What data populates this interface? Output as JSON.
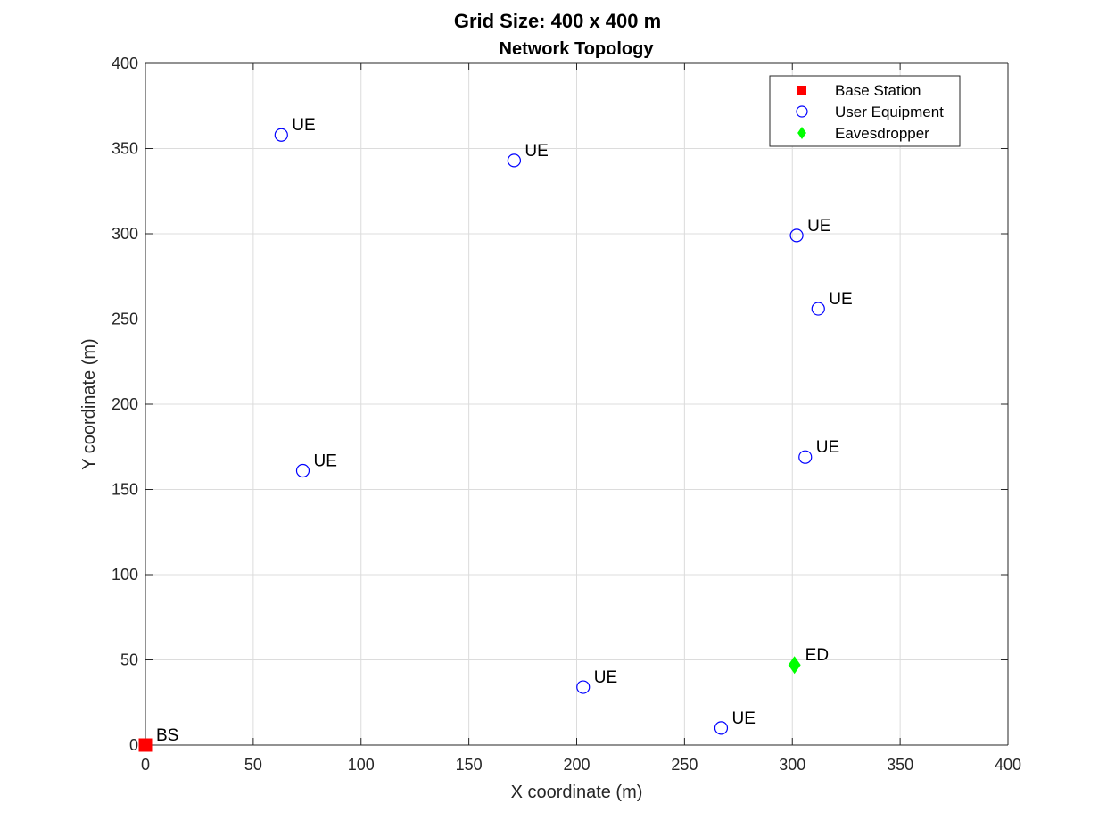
{
  "chart_data": {
    "type": "scatter",
    "title": "Grid Size: 400 x 400 m",
    "subtitle": "Network Topology",
    "xlabel": "X coordinate (m)",
    "ylabel": "Y coordinate (m)",
    "xlim": [
      0,
      400
    ],
    "ylim": [
      0,
      400
    ],
    "xticks": [
      0,
      50,
      100,
      150,
      200,
      250,
      300,
      350,
      400
    ],
    "yticks": [
      0,
      50,
      100,
      150,
      200,
      250,
      300,
      350,
      400
    ],
    "grid": true,
    "legend_position": "top-right",
    "series": [
      {
        "name": "Base Station",
        "marker": "square",
        "color": "#ff0000",
        "filled": true,
        "point_label": "BS",
        "points": [
          {
            "x": 0,
            "y": 0
          }
        ]
      },
      {
        "name": "User Equipment",
        "marker": "circle",
        "color": "#0000ff",
        "filled": false,
        "point_label": "UE",
        "points": [
          {
            "x": 63,
            "y": 358
          },
          {
            "x": 171,
            "y": 343
          },
          {
            "x": 302,
            "y": 299
          },
          {
            "x": 312,
            "y": 256
          },
          {
            "x": 73,
            "y": 161
          },
          {
            "x": 306,
            "y": 169
          },
          {
            "x": 203,
            "y": 34
          },
          {
            "x": 267,
            "y": 10
          }
        ]
      },
      {
        "name": "Eavesdropper",
        "marker": "diamond",
        "color": "#00ff00",
        "filled": true,
        "point_label": "ED",
        "points": [
          {
            "x": 301,
            "y": 47
          }
        ]
      }
    ]
  }
}
